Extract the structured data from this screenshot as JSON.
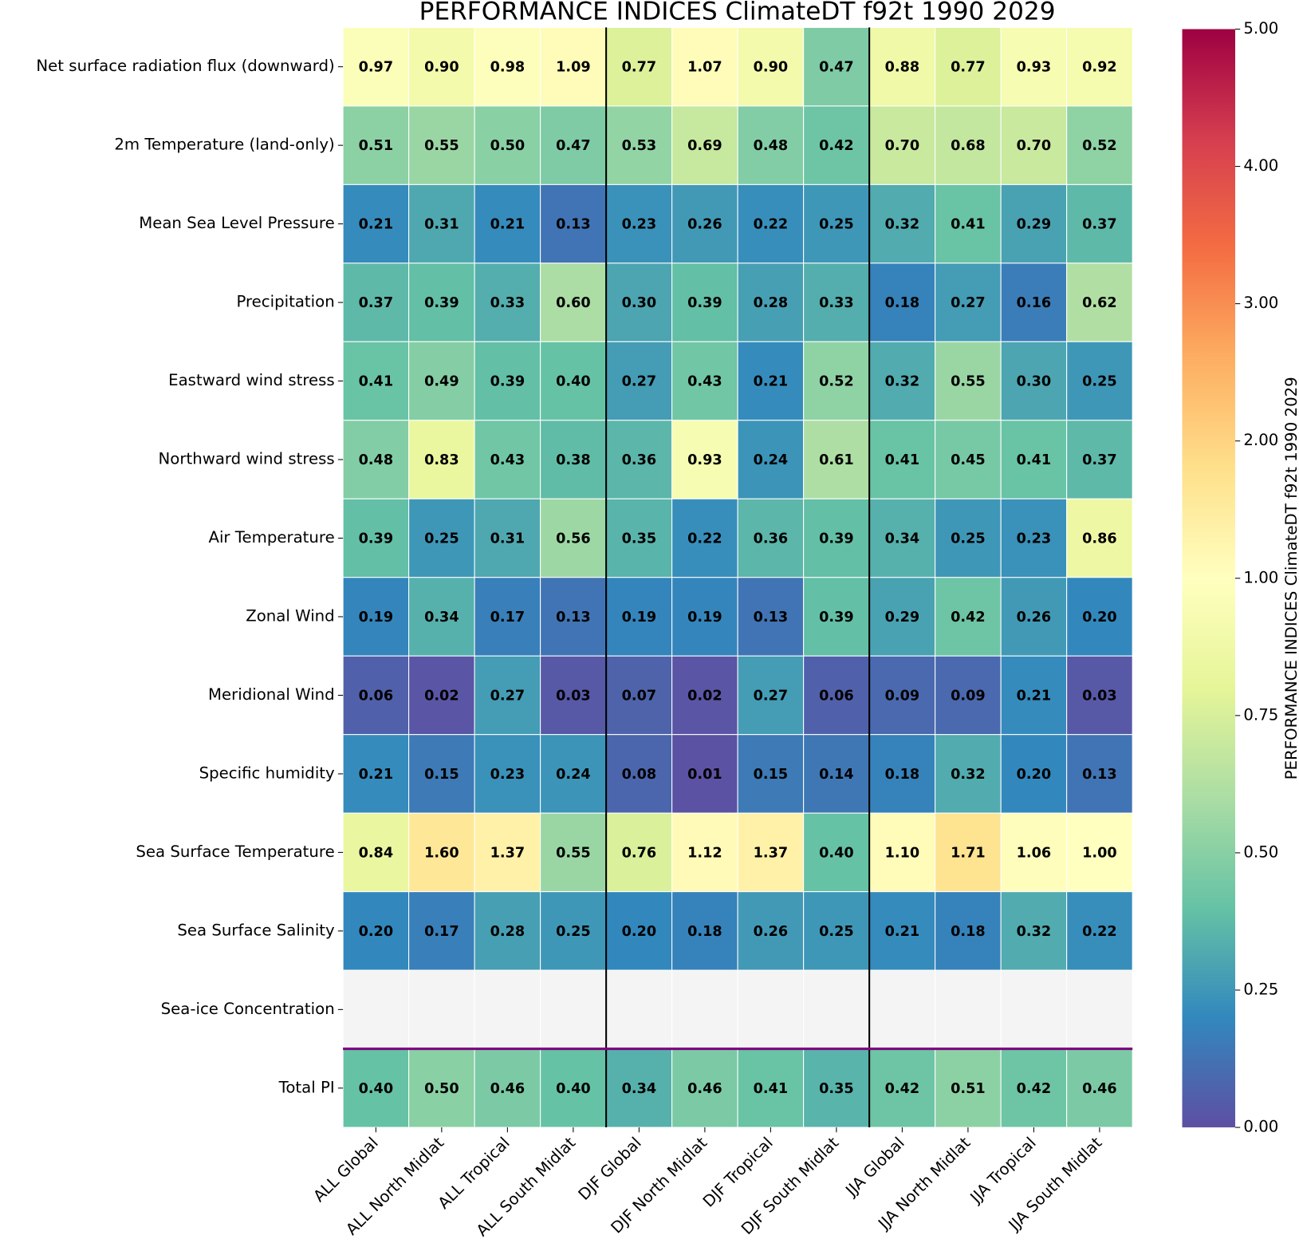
{
  "chart_data": {
    "type": "heatmap",
    "title": "PERFORMANCE INDICES ClimateDT f92t 1990 2029",
    "rows": [
      "Net surface radiation flux (downward)",
      "2m Temperature (land-only)",
      "Mean Sea Level Pressure",
      "Precipitation",
      "Eastward wind stress",
      "Northward wind stress",
      "Air Temperature",
      "Zonal Wind",
      "Meridional Wind",
      "Specific humidity",
      "Sea Surface Temperature",
      "Sea Surface Salinity",
      "Sea-ice Concentration",
      "Total PI"
    ],
    "columns": [
      "ALL Global",
      "ALL North Midlat",
      "ALL Tropical",
      "ALL South Midlat",
      "DJF Global",
      "DJF North Midlat",
      "DJF Tropical",
      "DJF South Midlat",
      "JJA Global",
      "JJA North Midlat",
      "JJA Tropical",
      "JJA South Midlat"
    ],
    "values": [
      [
        0.97,
        0.9,
        0.98,
        1.09,
        0.77,
        1.07,
        0.9,
        0.47,
        0.88,
        0.77,
        0.93,
        0.92
      ],
      [
        0.51,
        0.55,
        0.5,
        0.47,
        0.53,
        0.69,
        0.48,
        0.42,
        0.7,
        0.68,
        0.7,
        0.52
      ],
      [
        0.21,
        0.31,
        0.21,
        0.13,
        0.23,
        0.26,
        0.22,
        0.25,
        0.32,
        0.41,
        0.29,
        0.37
      ],
      [
        0.37,
        0.39,
        0.33,
        0.6,
        0.3,
        0.39,
        0.28,
        0.33,
        0.18,
        0.27,
        0.16,
        0.62
      ],
      [
        0.41,
        0.49,
        0.39,
        0.4,
        0.27,
        0.43,
        0.21,
        0.52,
        0.32,
        0.55,
        0.3,
        0.25
      ],
      [
        0.48,
        0.83,
        0.43,
        0.38,
        0.36,
        0.93,
        0.24,
        0.61,
        0.41,
        0.45,
        0.41,
        0.37
      ],
      [
        0.39,
        0.25,
        0.31,
        0.56,
        0.35,
        0.22,
        0.36,
        0.39,
        0.34,
        0.25,
        0.23,
        0.86
      ],
      [
        0.19,
        0.34,
        0.17,
        0.13,
        0.19,
        0.19,
        0.13,
        0.39,
        0.29,
        0.42,
        0.26,
        0.2
      ],
      [
        0.06,
        0.02,
        0.27,
        0.03,
        0.07,
        0.02,
        0.27,
        0.06,
        0.09,
        0.09,
        0.21,
        0.03
      ],
      [
        0.21,
        0.15,
        0.23,
        0.24,
        0.08,
        0.01,
        0.15,
        0.14,
        0.18,
        0.32,
        0.2,
        0.13
      ],
      [
        0.84,
        1.6,
        1.37,
        0.55,
        0.76,
        1.12,
        1.37,
        0.4,
        1.1,
        1.71,
        1.06,
        1.0
      ],
      [
        0.2,
        0.17,
        0.28,
        0.25,
        0.2,
        0.18,
        0.26,
        0.25,
        0.21,
        0.18,
        0.32,
        0.22
      ],
      [
        null,
        null,
        null,
        null,
        null,
        null,
        null,
        null,
        null,
        null,
        null,
        null
      ],
      [
        0.4,
        0.5,
        0.46,
        0.4,
        0.34,
        0.46,
        0.41,
        0.35,
        0.42,
        0.51,
        0.42,
        0.46
      ]
    ],
    "value_labels": [
      [
        "0.97",
        "0.90",
        "0.98",
        "1.09",
        "0.77",
        "1.07",
        "0.90",
        "0.47",
        "0.88",
        "0.77",
        "0.93",
        "0.92"
      ],
      [
        "0.51",
        "0.55",
        "0.50",
        "0.47",
        "0.53",
        "0.69",
        "0.48",
        "0.42",
        "0.70",
        "0.68",
        "0.70",
        "0.52"
      ],
      [
        "0.21",
        "0.31",
        "0.21",
        "0.13",
        "0.23",
        "0.26",
        "0.22",
        "0.25",
        "0.32",
        "0.41",
        "0.29",
        "0.37"
      ],
      [
        "0.37",
        "0.39",
        "0.33",
        "0.60",
        "0.30",
        "0.39",
        "0.28",
        "0.33",
        "0.18",
        "0.27",
        "0.16",
        "0.62"
      ],
      [
        "0.41",
        "0.49",
        "0.39",
        "0.40",
        "0.27",
        "0.43",
        "0.21",
        "0.52",
        "0.32",
        "0.55",
        "0.30",
        "0.25"
      ],
      [
        "0.48",
        "0.83",
        "0.43",
        "0.38",
        "0.36",
        "0.93",
        "0.24",
        "0.61",
        "0.41",
        "0.45",
        "0.41",
        "0.37"
      ],
      [
        "0.39",
        "0.25",
        "0.31",
        "0.56",
        "0.35",
        "0.22",
        "0.36",
        "0.39",
        "0.34",
        "0.25",
        "0.23",
        "0.86"
      ],
      [
        "0.19",
        "0.34",
        "0.17",
        "0.13",
        "0.19",
        "0.19",
        "0.13",
        "0.39",
        "0.29",
        "0.42",
        "0.26",
        "0.20"
      ],
      [
        "0.06",
        "0.02",
        "0.27",
        "0.03",
        "0.07",
        "0.02",
        "0.27",
        "0.06",
        "0.09",
        "0.09",
        "0.21",
        "0.03"
      ],
      [
        "0.21",
        "0.15",
        "0.23",
        "0.24",
        "0.08",
        "0.01",
        "0.15",
        "0.14",
        "0.18",
        "0.32",
        "0.20",
        "0.13"
      ],
      [
        "0.84",
        "1.60",
        "1.37",
        "0.55",
        "0.76",
        "1.12",
        "1.37",
        "0.40",
        "1.10",
        "1.71",
        "1.06",
        "1.00"
      ],
      [
        "0.20",
        "0.17",
        "0.28",
        "0.25",
        "0.20",
        "0.18",
        "0.26",
        "0.25",
        "0.21",
        "0.18",
        "0.32",
        "0.22"
      ],
      [
        null,
        null,
        null,
        null,
        null,
        null,
        null,
        null,
        null,
        null,
        null,
        null
      ],
      [
        "0.40",
        "0.50",
        "0.46",
        "0.40",
        "0.34",
        "0.46",
        "0.41",
        "0.35",
        "0.42",
        "0.51",
        "0.42",
        "0.46"
      ]
    ],
    "colormap": [
      "#5e4fa2",
      "#3288bd",
      "#66c2a5",
      "#abdda4",
      "#e6f598",
      "#ffffbf",
      "#fee08b",
      "#fdae61",
      "#f46d43",
      "#d53e4f",
      "#9e0142"
    ],
    "missing_color": "#f4f4f4",
    "colorbar": {
      "label": "PERFORMANCE INDICES ClimateDT f92t 1990 2029",
      "lim": [
        0,
        5
      ],
      "ticks": [
        {
          "value": 0,
          "label": "0.00"
        },
        {
          "value": 0.25,
          "label": "0.25"
        },
        {
          "value": 0.5,
          "label": "0.50"
        },
        {
          "value": 0.75,
          "label": "0.75"
        },
        {
          "value": 1,
          "label": "1.00"
        },
        {
          "value": 2,
          "label": "2.00"
        },
        {
          "value": 3,
          "label": "3.00"
        },
        {
          "value": 4,
          "label": "4.00"
        },
        {
          "value": 5,
          "label": "5.00"
        }
      ]
    }
  }
}
